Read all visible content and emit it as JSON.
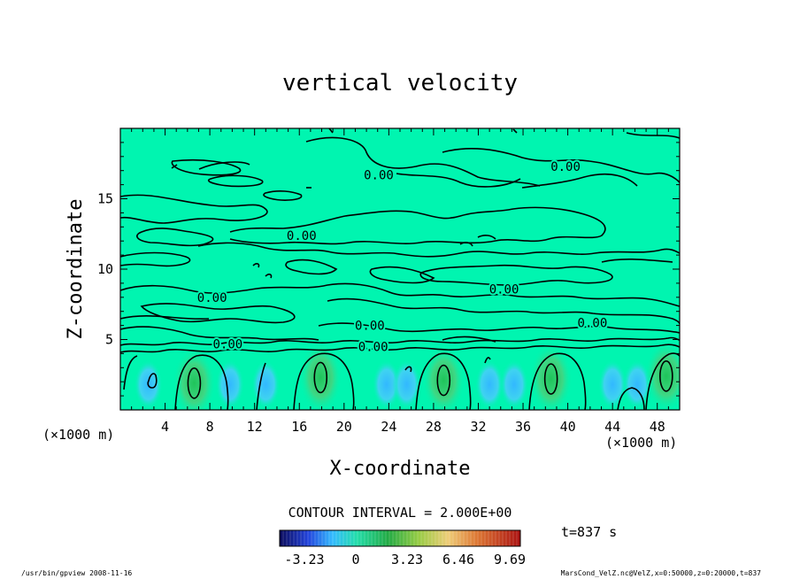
{
  "chart_data": {
    "type": "heatmap",
    "title": "vertical velocity",
    "xlabel": "X-coordinate",
    "ylabel": "Z-coordinate",
    "x_unit": "(×1000 m)",
    "y_unit": "(×1000 m)",
    "xlim": [
      0,
      50
    ],
    "ylim": [
      0,
      20
    ],
    "x_ticks": [
      "4",
      "8",
      "12",
      "16",
      "20",
      "24",
      "28",
      "32",
      "36",
      "40",
      "44",
      "48"
    ],
    "y_ticks": [
      "5",
      "10",
      "15"
    ],
    "contour_interval_text": "CONTOUR INTERVAL = 2.000E+00",
    "time_text": "t=837 s",
    "colorbar_ticks": [
      "-3.23",
      "0",
      "3.23",
      "6.46",
      "9.69"
    ],
    "colorbar_range": [
      -3.23,
      9.69
    ],
    "contour_labels": [
      {
        "text": "0.00",
        "x": 23.1,
        "z": 16.7
      },
      {
        "text": "0.00",
        "x": 39.8,
        "z": 17.3
      },
      {
        "text": "0.00",
        "x": 16.2,
        "z": 12.4
      },
      {
        "text": "0.00",
        "x": 8.2,
        "z": 8.0
      },
      {
        "text": "0.00",
        "x": 34.3,
        "z": 8.6
      },
      {
        "text": "0.00",
        "x": 22.3,
        "z": 6.0
      },
      {
        "text": "0.00",
        "x": 42.2,
        "z": 6.2
      },
      {
        "text": "0.00",
        "x": 22.6,
        "z": 4.5
      },
      {
        "text": "0.00",
        "x": 9.6,
        "z": 4.7
      }
    ],
    "updrafts": [
      {
        "x": 6.6,
        "z": 1.9
      },
      {
        "x": 17.9,
        "z": 2.3
      },
      {
        "x": 28.9,
        "z": 2.1
      },
      {
        "x": 38.5,
        "z": 2.2
      },
      {
        "x": 48.8,
        "z": 2.4
      }
    ],
    "colors": {
      "background_field": "#00f5b0",
      "updraft_core": "#1fc45a",
      "downdraft": "#35c8ff"
    }
  },
  "footer": {
    "left": "/usr/bin/gpview   2008-11-16",
    "right": "MarsCond_VelZ.nc@VelZ,x=0:50000,z=0:20000,t=837"
  }
}
